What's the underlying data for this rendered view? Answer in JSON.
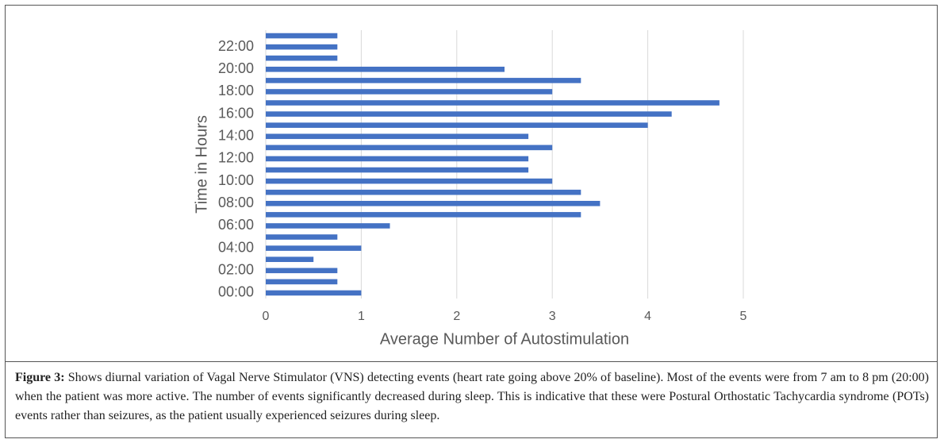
{
  "chart_data": {
    "type": "bar",
    "orientation": "horizontal",
    "categories": [
      "00:00",
      null,
      "02:00",
      null,
      "04:00",
      null,
      "06:00",
      null,
      "08:00",
      null,
      "10:00",
      null,
      "12:00",
      null,
      "14:00",
      null,
      "16:00",
      null,
      "18:00",
      null,
      "20:00",
      null,
      "22:00",
      null
    ],
    "values": [
      1,
      0.75,
      0.75,
      0.5,
      1,
      0.75,
      1.3,
      3.3,
      3.5,
      3.3,
      3,
      2.75,
      2.75,
      3,
      2.75,
      4,
      4.25,
      4.75,
      3,
      3.3,
      2.5,
      0.75,
      0.75,
      0.75
    ],
    "color": "#4472c4",
    "xlim": [
      0,
      5
    ],
    "xticks": [
      0,
      1,
      2,
      3,
      4,
      5
    ],
    "grid": true,
    "x_label": "Average Number of Autostimulation",
    "y_label": "Time in Hours"
  },
  "caption": {
    "label": "Figure 3:",
    "text": "Shows diurnal variation of Vagal Nerve Stimulator (VNS) detecting events (heart rate going above 20% of baseline). Most of the events were from 7 am to 8 pm (20:00) when the patient was more active. The number of events significantly decreased during sleep. This is indicative that these were Postural Orthostatic Tachycardia syndrome (POTs) events rather than seizures, as the patient usually experienced seizures during sleep."
  }
}
